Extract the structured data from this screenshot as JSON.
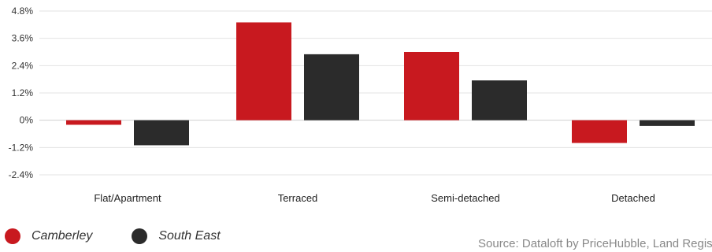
{
  "chart_data": {
    "type": "bar",
    "categories": [
      "Flat/Apartment",
      "Terraced",
      "Semi-detached",
      "Detached"
    ],
    "series": [
      {
        "name": "Camberley",
        "values": [
          -0.2,
          4.3,
          3.0,
          -1.0
        ],
        "color": "#c8191f"
      },
      {
        "name": "South East",
        "values": [
          -1.1,
          2.9,
          1.75,
          -0.25
        ],
        "color": "#2b2b2b"
      }
    ],
    "ylim": [
      -2.4,
      4.8
    ],
    "yticks": [
      "4.8%",
      "3.6%",
      "2.4%",
      "1.2%",
      "0%",
      "-1.2%",
      "-2.4%"
    ],
    "ytick_values": [
      4.8,
      3.6,
      2.4,
      1.2,
      0,
      -1.2,
      -2.4
    ],
    "grid": true,
    "legend_position": "bottom-left",
    "title": "",
    "xlabel": "",
    "ylabel": ""
  },
  "legend": {
    "items": [
      {
        "label": "Camberley",
        "color": "#c8191f"
      },
      {
        "label": "South East",
        "color": "#2b2b2b"
      }
    ]
  },
  "source": {
    "text": "Source: Dataloft by PriceHubble, Land Registry"
  }
}
